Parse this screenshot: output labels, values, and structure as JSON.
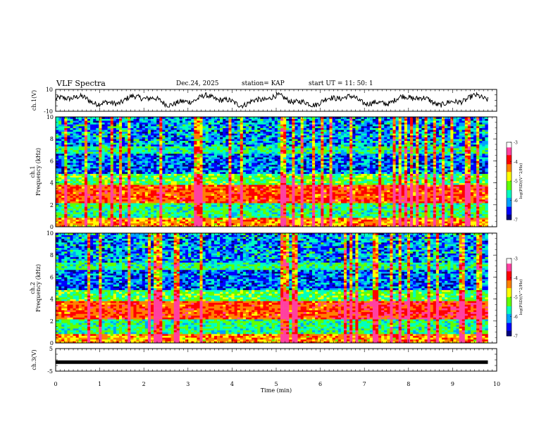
{
  "header": {
    "title": "VLF Spectra",
    "date": "Dec.24, 2025",
    "station": "station= KAP",
    "start": "start  UT =   11: 50: 1"
  },
  "chart_data": [
    {
      "type": "line",
      "ylabel": "ch.1(V)",
      "ylim": [
        -10,
        10
      ],
      "yticks": [
        "10",
        "-10"
      ],
      "xlim": [
        0,
        10
      ],
      "description_series": "noisy oscillating voltage trace between roughly -6 and 6 V over 0–9.8 min"
    },
    {
      "type": "heatmap",
      "ylabel_top": "ch.1",
      "ylabel": "Frequency (kHz)",
      "ylim": [
        0,
        10
      ],
      "yticks": [
        "0",
        "2",
        "4",
        "6",
        "8",
        "10"
      ],
      "xlim": [
        0,
        10
      ],
      "colorbar": {
        "label": "log(PSD)(V^2/Hz)",
        "range": [
          -7,
          -3
        ],
        "ticks": [
          "-3",
          "-4",
          "-5",
          "-6",
          "-7"
        ],
        "colors": [
          "#000080",
          "#0000ff",
          "#00a0ff",
          "#00ffc0",
          "#60ff00",
          "#ffff00",
          "#ff8000",
          "#ff0000",
          "#ff40a0",
          "#ffffff"
        ]
      }
    },
    {
      "type": "heatmap",
      "ylabel_top": "ch.2",
      "ylabel": "Frequency (kHz)",
      "ylim": [
        0,
        10
      ],
      "yticks": [
        "0",
        "2",
        "4",
        "6",
        "8",
        "10"
      ],
      "xlim": [
        0,
        10
      ],
      "colorbar": {
        "label": "log(PSD)(V^2/Hz)",
        "range": [
          -7,
          -3
        ],
        "ticks": [
          "-3",
          "-4",
          "-5",
          "-6",
          "-7"
        ]
      }
    },
    {
      "type": "line",
      "ylabel": "ch.3(V)",
      "ylim": [
        -5,
        5
      ],
      "yticks": [
        "5",
        "-5"
      ],
      "xlim": [
        0,
        10
      ],
      "xlabel": "Time (min)",
      "xticks": [
        "0",
        "1",
        "2",
        "3",
        "4",
        "5",
        "6",
        "7",
        "8",
        "9",
        "10"
      ],
      "series_level": -1
    }
  ]
}
